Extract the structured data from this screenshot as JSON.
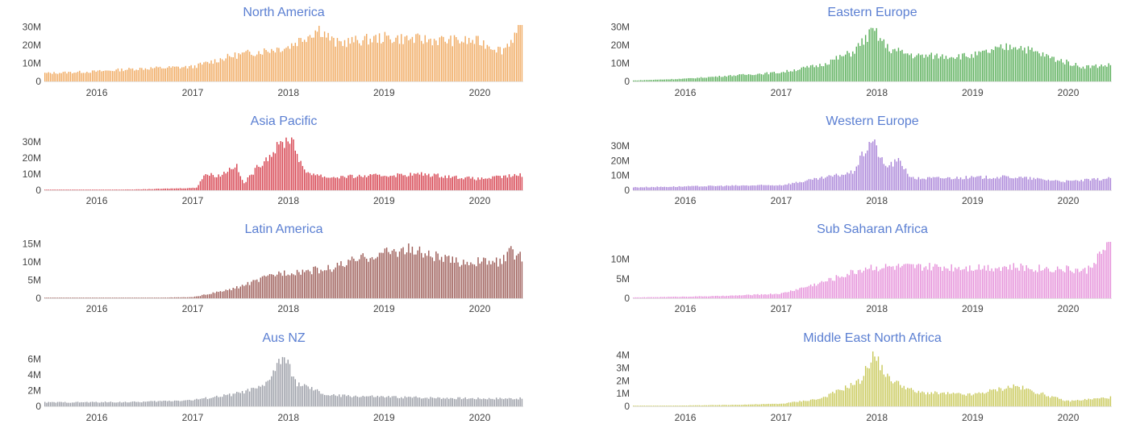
{
  "chart_data": [
    {
      "type": "bar",
      "title": "North America",
      "color": "#f0a95f",
      "title_color": "#5b7fd2",
      "x_range": [
        "2015-06-15",
        "2020-06-15"
      ],
      "x_ticks": [
        "2016",
        "2017",
        "2018",
        "2019",
        "2020"
      ],
      "y_ticks": [
        "0",
        "10M",
        "20M",
        "30M"
      ],
      "ylim": [
        0,
        31000000
      ],
      "points": [
        [
          "2015-06-15",
          4500000
        ],
        [
          "2016-01-01",
          5500000
        ],
        [
          "2016-06-01",
          7000000
        ],
        [
          "2017-01-01",
          8000000
        ],
        [
          "2017-06-01",
          14000000
        ],
        [
          "2018-01-01",
          19000000
        ],
        [
          "2018-05-01",
          29000000
        ],
        [
          "2018-07-01",
          21000000
        ],
        [
          "2019-01-01",
          24000000
        ],
        [
          "2019-06-01",
          23000000
        ],
        [
          "2020-01-01",
          22000000
        ],
        [
          "2020-04-01",
          17000000
        ],
        [
          "2020-06-15",
          30000000
        ]
      ]
    },
    {
      "type": "bar",
      "title": "Eastern Europe",
      "color": "#5aaf5a",
      "title_color": "#5b7fd2",
      "x_range": [
        "2015-06-15",
        "2020-06-15"
      ],
      "x_ticks": [
        "2016",
        "2017",
        "2018",
        "2019",
        "2020"
      ],
      "y_ticks": [
        "0",
        "10M",
        "20M",
        "30M"
      ],
      "ylim": [
        0,
        31000000
      ],
      "points": [
        [
          "2015-06-15",
          500000
        ],
        [
          "2016-01-01",
          1500000
        ],
        [
          "2016-06-01",
          3000000
        ],
        [
          "2017-01-01",
          5000000
        ],
        [
          "2017-06-01",
          9000000
        ],
        [
          "2017-10-01",
          16000000
        ],
        [
          "2017-12-20",
          28000000
        ],
        [
          "2018-02-15",
          18000000
        ],
        [
          "2018-06-01",
          14000000
        ],
        [
          "2019-01-01",
          14000000
        ],
        [
          "2019-06-15",
          20000000
        ],
        [
          "2019-11-01",
          13000000
        ],
        [
          "2020-03-01",
          8000000
        ],
        [
          "2020-06-15",
          9000000
        ]
      ]
    },
    {
      "type": "bar",
      "title": "Asia Pacific",
      "color": "#d6404d",
      "title_color": "#5b7fd2",
      "x_range": [
        "2015-06-15",
        "2020-06-15"
      ],
      "x_ticks": [
        "2016",
        "2017",
        "2018",
        "2019",
        "2020"
      ],
      "y_ticks": [
        "0",
        "10M",
        "20M",
        "30M"
      ],
      "ylim": [
        0,
        33000000
      ],
      "points": [
        [
          "2015-06-15",
          100000
        ],
        [
          "2016-06-01",
          500000
        ],
        [
          "2017-01-15",
          1500000
        ],
        [
          "2017-02-15",
          10000000
        ],
        [
          "2017-04-15",
          9000000
        ],
        [
          "2017-06-15",
          16000000
        ],
        [
          "2017-07-15",
          4000000
        ],
        [
          "2017-09-15",
          16000000
        ],
        [
          "2017-12-01",
          28000000
        ],
        [
          "2018-01-15",
          33000000
        ],
        [
          "2018-03-01",
          12000000
        ],
        [
          "2018-06-01",
          8000000
        ],
        [
          "2019-06-01",
          10000000
        ],
        [
          "2020-01-01",
          7000000
        ],
        [
          "2020-06-15",
          9500000
        ]
      ]
    },
    {
      "type": "bar",
      "title": "Western Europe",
      "color": "#a983d8",
      "title_color": "#5b7fd2",
      "x_range": [
        "2015-06-15",
        "2020-06-15"
      ],
      "x_ticks": [
        "2016",
        "2017",
        "2018",
        "2019",
        "2020"
      ],
      "y_ticks": [
        "0",
        "10M",
        "20M",
        "30M"
      ],
      "ylim": [
        0,
        36000000
      ],
      "points": [
        [
          "2015-06-15",
          2000000
        ],
        [
          "2016-06-01",
          3000000
        ],
        [
          "2017-01-01",
          3500000
        ],
        [
          "2017-06-01",
          8000000
        ],
        [
          "2017-10-01",
          12000000
        ],
        [
          "2017-12-15",
          35000000
        ],
        [
          "2018-02-01",
          16000000
        ],
        [
          "2018-04-01",
          20000000
        ],
        [
          "2018-05-15",
          8000000
        ],
        [
          "2019-06-01",
          9000000
        ],
        [
          "2020-01-01",
          6000000
        ],
        [
          "2020-06-15",
          8000000
        ]
      ]
    },
    {
      "type": "bar",
      "title": "Latin America",
      "color": "#9c5b56",
      "title_color": "#5b7fd2",
      "x_range": [
        "2015-06-15",
        "2020-06-15"
      ],
      "x_ticks": [
        "2016",
        "2017",
        "2018",
        "2019",
        "2020"
      ],
      "y_ticks": [
        "0",
        "5M",
        "10M",
        "15M"
      ],
      "ylim": [
        0,
        15500000
      ],
      "points": [
        [
          "2015-06-15",
          50000
        ],
        [
          "2016-06-01",
          100000
        ],
        [
          "2017-01-01",
          300000
        ],
        [
          "2017-06-01",
          2500000
        ],
        [
          "2017-12-01",
          7000000
        ],
        [
          "2018-06-01",
          8000000
        ],
        [
          "2018-12-01",
          12000000
        ],
        [
          "2019-04-01",
          13500000
        ],
        [
          "2019-10-01",
          10000000
        ],
        [
          "2020-04-01",
          10000000
        ],
        [
          "2020-05-01",
          13000000
        ],
        [
          "2020-06-15",
          11000000
        ]
      ]
    },
    {
      "type": "bar",
      "title": "Sub Saharan Africa",
      "color": "#e58fd9",
      "title_color": "#5b7fd2",
      "x_range": [
        "2015-06-15",
        "2020-06-15"
      ],
      "x_ticks": [
        "2016",
        "2017",
        "2018",
        "2019",
        "2020"
      ],
      "y_ticks": [
        "0",
        "5M",
        "10M"
      ],
      "ylim": [
        0,
        14500000
      ],
      "points": [
        [
          "2015-06-15",
          200000
        ],
        [
          "2016-06-01",
          600000
        ],
        [
          "2017-01-01",
          1200000
        ],
        [
          "2017-06-01",
          4000000
        ],
        [
          "2017-12-01",
          8000000
        ],
        [
          "2018-06-01",
          8000000
        ],
        [
          "2019-06-01",
          8000000
        ],
        [
          "2020-01-01",
          7500000
        ],
        [
          "2020-03-15",
          7000000
        ],
        [
          "2020-05-01",
          11000000
        ],
        [
          "2020-06-15",
          14000000
        ]
      ]
    },
    {
      "type": "bar",
      "title": "Aus NZ",
      "color": "#9a9da6",
      "title_color": "#5b7fd2",
      "x_range": [
        "2015-06-15",
        "2020-06-15"
      ],
      "x_ticks": [
        "2016",
        "2017",
        "2018",
        "2019",
        "2020"
      ],
      "y_ticks": [
        "0",
        "2M",
        "4M",
        "6M"
      ],
      "ylim": [
        0,
        7000000
      ],
      "points": [
        [
          "2015-06-15",
          500000
        ],
        [
          "2016-06-01",
          550000
        ],
        [
          "2017-01-01",
          800000
        ],
        [
          "2017-06-01",
          1500000
        ],
        [
          "2017-10-01",
          2500000
        ],
        [
          "2017-12-15",
          6500000
        ],
        [
          "2018-02-01",
          3000000
        ],
        [
          "2018-06-01",
          1400000
        ],
        [
          "2019-01-01",
          1200000
        ],
        [
          "2020-01-01",
          1000000
        ],
        [
          "2020-06-15",
          1000000
        ]
      ]
    },
    {
      "type": "bar",
      "title": "Middle East North Africa",
      "color": "#c9c95a",
      "title_color": "#5b7fd2",
      "x_range": [
        "2015-06-15",
        "2020-06-15"
      ],
      "x_ticks": [
        "2016",
        "2017",
        "2018",
        "2019",
        "2020"
      ],
      "y_ticks": [
        "0",
        "1M",
        "2M",
        "3M",
        "4M"
      ],
      "ylim": [
        0,
        4300000
      ],
      "points": [
        [
          "2015-06-15",
          20000
        ],
        [
          "2016-06-01",
          100000
        ],
        [
          "2017-01-01",
          200000
        ],
        [
          "2017-06-01",
          600000
        ],
        [
          "2017-11-01",
          2000000
        ],
        [
          "2017-12-20",
          4100000
        ],
        [
          "2018-02-15",
          2200000
        ],
        [
          "2018-06-01",
          1100000
        ],
        [
          "2019-01-01",
          900000
        ],
        [
          "2019-06-15",
          1600000
        ],
        [
          "2020-01-01",
          400000
        ],
        [
          "2020-06-15",
          700000
        ]
      ]
    }
  ]
}
